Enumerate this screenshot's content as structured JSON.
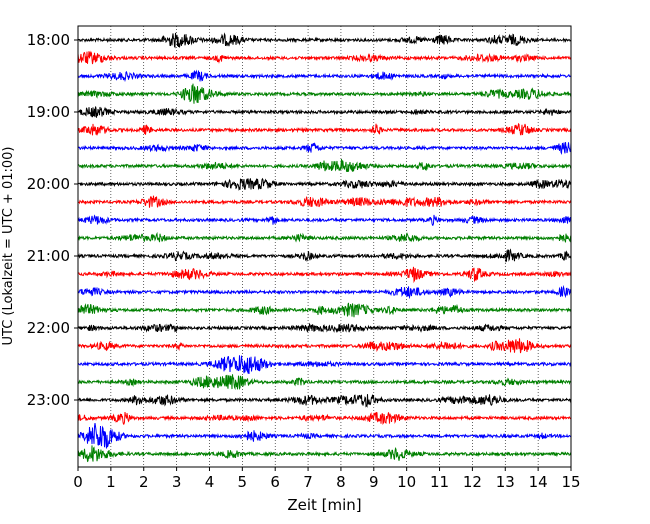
{
  "chart_data": {
    "type": "line",
    "title": "",
    "xlabel": "Zeit  [min]",
    "ylabel": "UTC (Lokalzeit = UTC + 01:00)",
    "xlim": [
      0,
      15
    ],
    "x_ticks": [
      0,
      1,
      2,
      3,
      4,
      5,
      6,
      7,
      8,
      9,
      10,
      11,
      12,
      13,
      14,
      15
    ],
    "x_tick_labels": [
      "0",
      "1",
      "2",
      "3",
      "4",
      "5",
      "6",
      "7",
      "8",
      "9",
      "10",
      "11",
      "12",
      "13",
      "14",
      "15"
    ],
    "y_tick_labels": [
      "18:00",
      "19:00",
      "20:00",
      "21:00",
      "22:00",
      "23:00"
    ],
    "grid": "vertical dotted lines at each minute",
    "trace_colors": [
      "#000000",
      "#ff0000",
      "#0000ff",
      "#008000"
    ],
    "traces": [
      {
        "start": "18:00",
        "color": "#000000"
      },
      {
        "start": "18:15",
        "color": "#ff0000"
      },
      {
        "start": "18:30",
        "color": "#0000ff"
      },
      {
        "start": "18:45",
        "color": "#008000"
      },
      {
        "start": "19:00",
        "color": "#000000"
      },
      {
        "start": "19:15",
        "color": "#ff0000"
      },
      {
        "start": "19:30",
        "color": "#0000ff"
      },
      {
        "start": "19:45",
        "color": "#008000"
      },
      {
        "start": "20:00",
        "color": "#000000"
      },
      {
        "start": "20:15",
        "color": "#ff0000"
      },
      {
        "start": "20:30",
        "color": "#0000ff"
      },
      {
        "start": "20:45",
        "color": "#008000"
      },
      {
        "start": "21:00",
        "color": "#000000"
      },
      {
        "start": "21:15",
        "color": "#ff0000"
      },
      {
        "start": "21:30",
        "color": "#0000ff"
      },
      {
        "start": "21:45",
        "color": "#008000"
      },
      {
        "start": "22:00",
        "color": "#000000"
      },
      {
        "start": "22:15",
        "color": "#ff0000"
      },
      {
        "start": "22:30",
        "color": "#0000ff"
      },
      {
        "start": "22:45",
        "color": "#008000"
      },
      {
        "start": "23:00",
        "color": "#000000"
      },
      {
        "start": "23:15",
        "color": "#ff0000"
      },
      {
        "start": "23:30",
        "color": "#0000ff"
      },
      {
        "start": "23:45",
        "color": "#008000"
      }
    ]
  }
}
